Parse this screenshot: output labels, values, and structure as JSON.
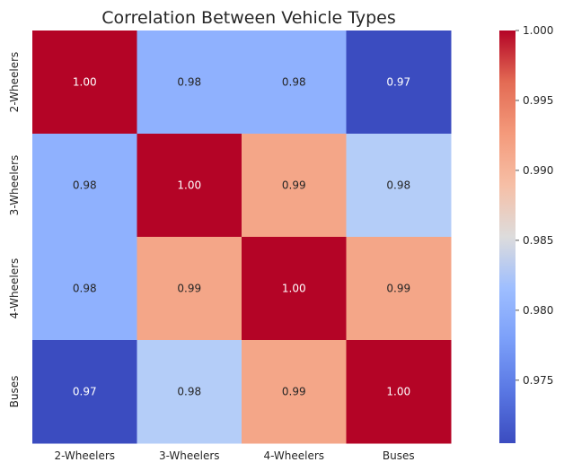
{
  "chart_data": {
    "type": "heatmap",
    "title": "Correlation Between Vehicle Types",
    "x_categories": [
      "2-Wheelers",
      "3-Wheelers",
      "4-Wheelers",
      "Buses"
    ],
    "y_categories": [
      "2-Wheelers",
      "3-Wheelers",
      "4-Wheelers",
      "Buses"
    ],
    "values": [
      [
        1.0,
        0.98,
        0.98,
        0.97
      ],
      [
        0.98,
        1.0,
        0.99,
        0.98
      ],
      [
        0.98,
        0.99,
        1.0,
        0.99
      ],
      [
        0.97,
        0.98,
        0.99,
        1.0
      ]
    ],
    "cell_colors": [
      [
        "#b40426",
        "#8fb1fe",
        "#8fb1fe",
        "#3b4cc0"
      ],
      [
        "#8fb1fe",
        "#b40426",
        "#f4a688",
        "#b4cdf8"
      ],
      [
        "#8fb1fe",
        "#f4a688",
        "#b40426",
        "#f4a688"
      ],
      [
        "#3b4cc0",
        "#b4cdf8",
        "#f4a688",
        "#b40426"
      ]
    ],
    "cell_labels": [
      [
        "1.00",
        "0.98",
        "0.98",
        "0.97"
      ],
      [
        "0.98",
        "1.00",
        "0.99",
        "0.98"
      ],
      [
        "0.98",
        "0.99",
        "1.00",
        "0.99"
      ],
      [
        "0.97",
        "0.98",
        "0.99",
        "1.00"
      ]
    ],
    "colormap": "coolwarm",
    "colorbar": {
      "vmin": 0.9705,
      "vmax": 1.0,
      "ticks": [
        0.975,
        0.98,
        0.985,
        0.99,
        0.995,
        1.0
      ],
      "tick_labels": [
        "0.975",
        "0.980",
        "0.985",
        "0.990",
        "0.995",
        "1.000"
      ]
    },
    "grid": false
  }
}
